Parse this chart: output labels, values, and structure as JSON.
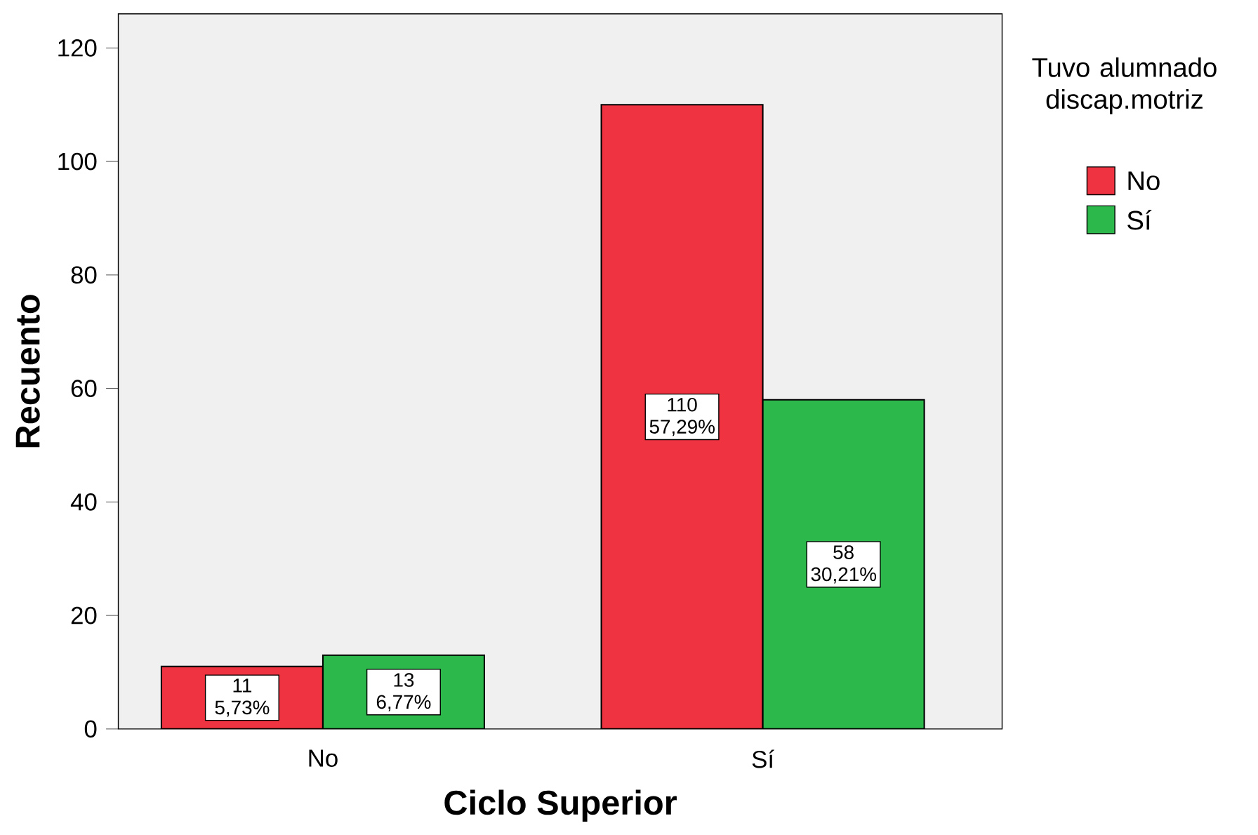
{
  "chart_data": {
    "type": "bar",
    "xlabel": "Ciclo Superior",
    "ylabel": "Recuento",
    "legend_title": "Tuvo alumnado discap.motriz",
    "categories": [
      "No",
      "Sí"
    ],
    "series": [
      {
        "name": "No",
        "color": "#ef3340",
        "values": [
          11,
          110
        ],
        "value_labels": [
          "11 5,73%",
          "110 57,29%"
        ]
      },
      {
        "name": "Sí",
        "color": "#2db84b",
        "values": [
          13,
          58
        ],
        "value_labels": [
          "13 6,77%",
          "58 30,21%"
        ]
      }
    ],
    "ylim": [
      0,
      126
    ],
    "yticks": [
      0,
      20,
      40,
      60,
      80,
      100,
      120
    ],
    "grid": false,
    "legend": "right"
  }
}
